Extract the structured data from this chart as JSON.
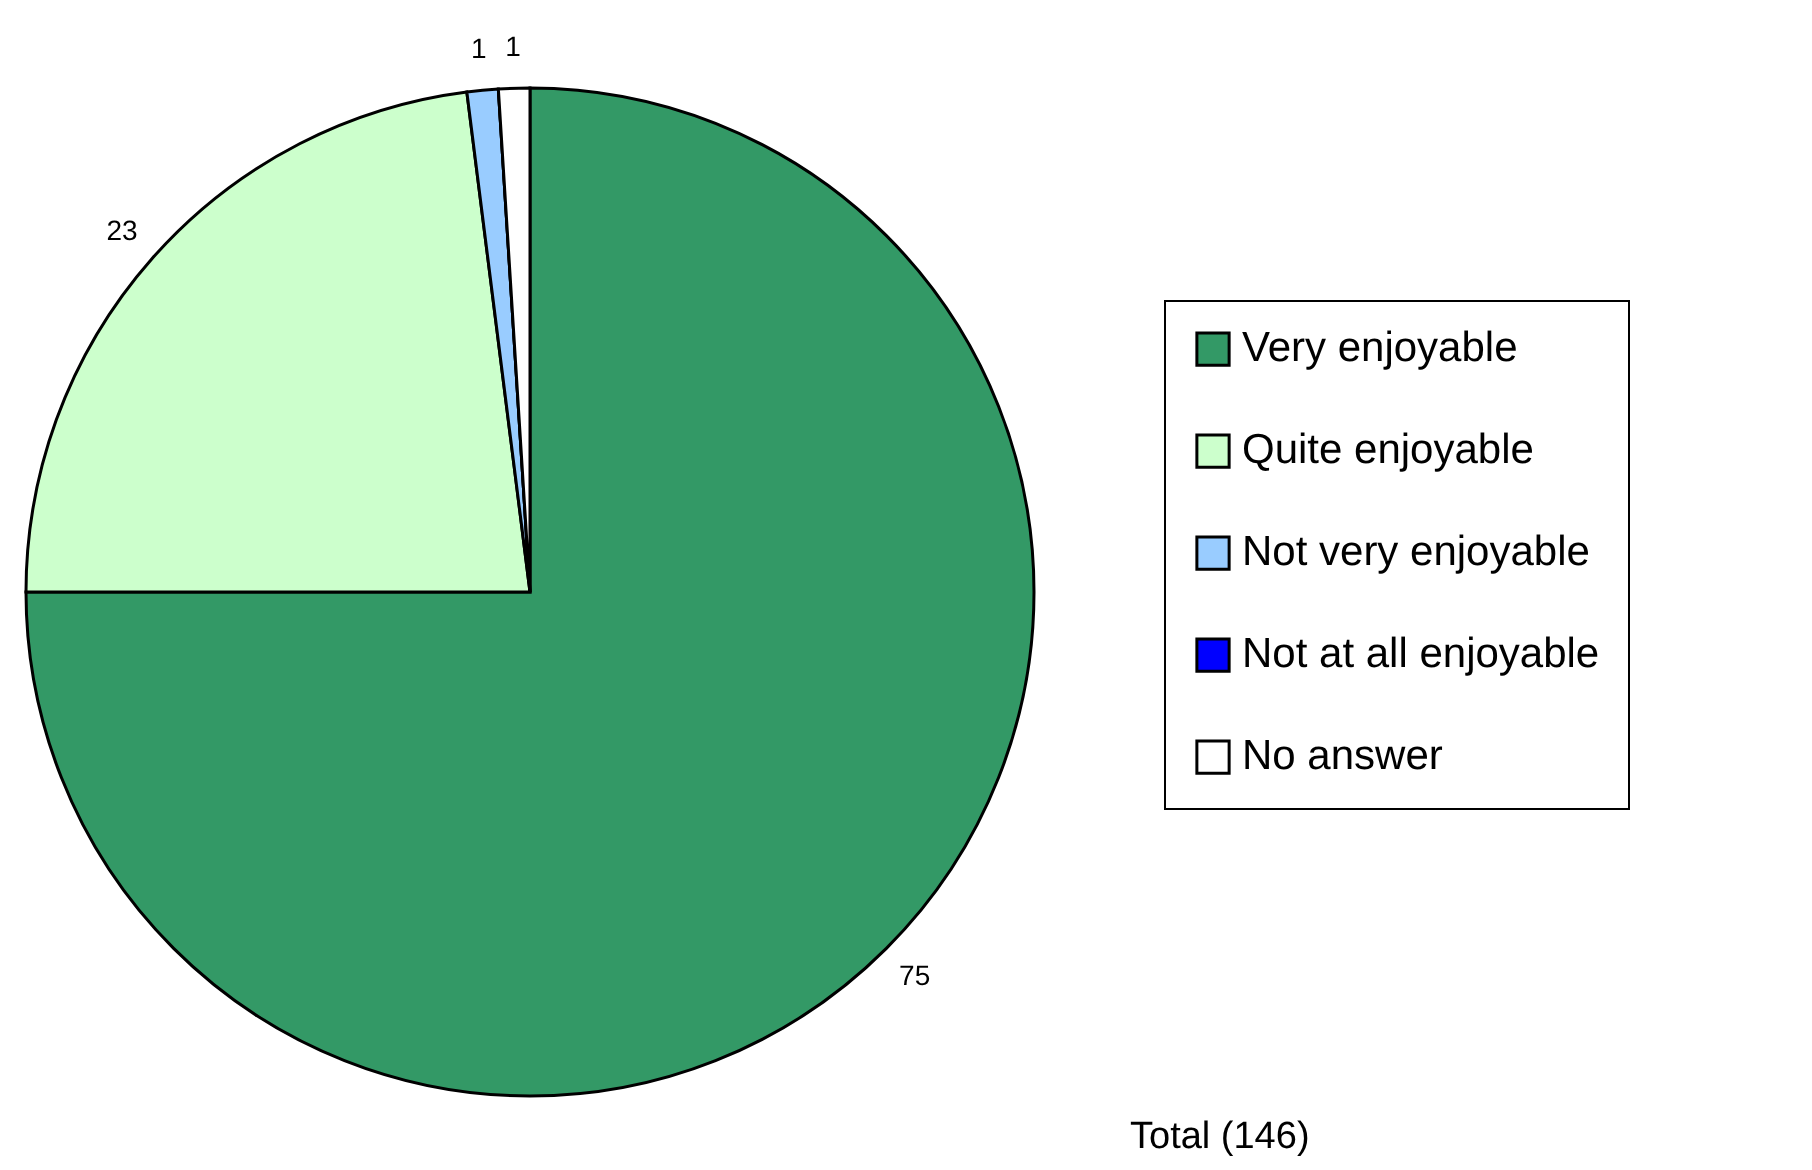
{
  "chart_data": {
    "type": "pie",
    "categories": [
      "Very enjoyable",
      "Quite enjoyable",
      "Not very enjoyable",
      "Not at all enjoyable",
      "No answer"
    ],
    "values": [
      75,
      23,
      1,
      0,
      1
    ],
    "colors": [
      "#339966",
      "#ccffcc",
      "#99ccff",
      "#0000ff",
      "#ffffff"
    ],
    "value_labels": [
      "75",
      "23",
      "1",
      null,
      "1"
    ],
    "legend": "right",
    "annotations": [
      "Total (146)"
    ]
  }
}
